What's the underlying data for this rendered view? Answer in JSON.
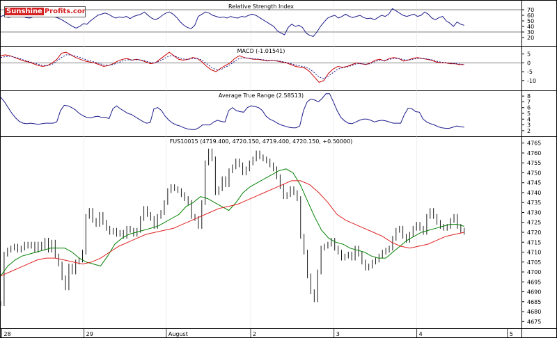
{
  "watermark": {
    "part1": "Sunshine",
    "part2": "Profits",
    "suffix": ".com"
  },
  "chart_data": [
    {
      "type": "line",
      "title": "Relative Strength Index",
      "ylim": [
        10,
        80
      ],
      "yticks": [
        20,
        30,
        40,
        50,
        60,
        70
      ],
      "reference_lines": [
        30,
        70
      ],
      "series": [
        {
          "color": "#1a1a8c",
          "values": [
            58,
            60,
            56,
            57,
            60,
            59,
            58,
            56,
            55,
            57,
            60,
            58,
            59,
            60,
            58,
            57,
            55,
            52,
            48,
            44,
            40,
            37,
            40,
            45,
            44,
            50,
            55,
            60,
            62,
            64,
            62,
            58,
            55,
            57,
            56,
            58,
            54,
            58,
            60,
            62,
            66,
            60,
            55,
            52,
            55,
            60,
            64,
            66,
            62,
            56,
            48,
            42,
            38,
            36,
            42,
            58,
            62,
            66,
            64,
            60,
            58,
            56,
            57,
            55,
            58,
            56,
            55,
            58,
            57,
            60,
            62,
            60,
            56,
            52,
            48,
            44,
            40,
            32,
            28,
            25,
            38,
            44,
            40,
            42,
            38,
            28,
            24,
            22,
            30,
            40,
            48,
            55,
            58,
            60,
            55,
            58,
            62,
            58,
            56,
            58,
            60,
            56,
            54,
            55,
            52,
            56,
            60,
            58,
            62,
            72,
            68,
            64,
            60,
            58,
            60,
            62,
            58,
            60,
            66,
            62,
            55,
            52,
            56,
            58,
            50,
            46,
            40,
            48,
            44,
            42
          ]
        }
      ],
      "xticks": [
        "28",
        "29",
        "August",
        "2",
        "3",
        "4",
        "5"
      ]
    },
    {
      "type": "line",
      "title": "MACD (-1.01541)",
      "ylim": [
        -14,
        8
      ],
      "yticks": [
        -10,
        -5,
        0,
        5
      ],
      "reference_lines": [
        0
      ],
      "series": [
        {
          "color": "#cc0000",
          "values": [
            4,
            4.5,
            4,
            3,
            2,
            1,
            0.5,
            -0.5,
            -1.5,
            -2,
            -1.5,
            0,
            2,
            5.5,
            6,
            4.5,
            3,
            2,
            1,
            0.5,
            0,
            -1,
            -2,
            -1.5,
            -0.5,
            1,
            2,
            2.5,
            1.5,
            2,
            1.5,
            0.5,
            -0.5,
            0,
            2,
            4,
            6,
            4,
            2,
            1.5,
            2,
            3,
            2.5,
            0.5,
            -2,
            -4,
            -5,
            -3,
            -1.5,
            0,
            2.5,
            4,
            3,
            2.5,
            2,
            2,
            1.5,
            1,
            1.5,
            1,
            0.5,
            0,
            -1,
            -2,
            -2.5,
            -3,
            -5,
            -8,
            -11,
            -10,
            -6,
            -3.5,
            -2,
            -2.5,
            -2,
            -1,
            0,
            -0.5,
            -1,
            0,
            1.5,
            2,
            1,
            2.5,
            3,
            2.5,
            1,
            1.5,
            2.5,
            3,
            2.5,
            2,
            1.5,
            0.5,
            0,
            0,
            -0.5,
            -0.5,
            -1,
            -1
          ]
        },
        {
          "color": "#1a1a8c",
          "values": [
            3,
            3.5,
            3.8,
            3.2,
            2.5,
            1.5,
            0.8,
            0,
            -0.8,
            -1.5,
            -1.6,
            -0.8,
            1,
            3,
            4.5,
            4.5,
            3.8,
            3,
            2,
            1.2,
            0.5,
            -0.3,
            -1.2,
            -1.4,
            -0.9,
            0,
            1,
            1.8,
            1.6,
            1.8,
            1.6,
            1,
            0.2,
            0,
            1,
            2.5,
            4,
            4,
            3,
            2.2,
            2,
            2.5,
            2.5,
            1.5,
            -0.5,
            -2.5,
            -4,
            -3.8,
            -2.5,
            -1,
            1,
            2.5,
            2.8,
            2.6,
            2.3,
            2.1,
            1.8,
            1.4,
            1.4,
            1.2,
            0.8,
            0.3,
            -0.5,
            -1.2,
            -1.8,
            -2.3,
            -3.5,
            -5.5,
            -8,
            -9,
            -7.5,
            -5.5,
            -3.5,
            -2.8,
            -2.3,
            -1.5,
            -0.5,
            -0.5,
            -0.8,
            -0.5,
            0.8,
            1.5,
            1.3,
            2,
            2.5,
            2.5,
            1.8,
            1.6,
            2,
            2.5,
            2.5,
            2.2,
            1.8,
            1,
            0.4,
            0.2,
            -0.2,
            -0.4,
            -0.7,
            -0.9
          ]
        }
      ]
    },
    {
      "type": "line",
      "title": "Average True Range (2.58513)",
      "ylim": [
        1.5,
        8.5
      ],
      "yticks": [
        2,
        3,
        4,
        5,
        6,
        7,
        8
      ],
      "series": [
        {
          "color": "#1a1a8c",
          "values": [
            7.8,
            7,
            6,
            5,
            4.2,
            3.6,
            3.3,
            3.2,
            3.3,
            3.2,
            3.1,
            3.2,
            3.3,
            3.3,
            3.3,
            3.5,
            5.5,
            6.4,
            6.3,
            6,
            5.6,
            5,
            4.6,
            4.3,
            4.2,
            4.4,
            4.5,
            4.3,
            4.3,
            4.1,
            5.8,
            6.3,
            5.8,
            5.4,
            5,
            4.8,
            4.4,
            4,
            3.6,
            3.3,
            3.4,
            5.8,
            6,
            5.5,
            4.5,
            3.8,
            3.3,
            3,
            2.8,
            2.5,
            2.3,
            2.2,
            2.2,
            2.5,
            3,
            3,
            3,
            3.5,
            3.8,
            3.6,
            3.5,
            5.5,
            6,
            5.5,
            5.3,
            5.2,
            6,
            6.3,
            6.2,
            6,
            5.5,
            4.5,
            4,
            3.7,
            3.3,
            3,
            2.8,
            2.6,
            2.5,
            2.5,
            2.8,
            5.5,
            7,
            7.5,
            7.3,
            7,
            7.6,
            8.4,
            8.4,
            7,
            5.5,
            4.3,
            3.7,
            3.3,
            3.2,
            3.5,
            3.8,
            4,
            4,
            3.8,
            3.5,
            3.7,
            3.8,
            3.7,
            3.5,
            3.3,
            3.3,
            3.3,
            4.8,
            5.9,
            5.8,
            5.3,
            5.2,
            4,
            3.5,
            3.2,
            3,
            2.7,
            2.5,
            2.4,
            2.4,
            2.6,
            2.8,
            2.7,
            2.6
          ]
        }
      ]
    },
    {
      "type": "line",
      "title": "FUS10015 (4719.400, 4720.150, 4719.400, 4720.150, +0.50000)",
      "ylim": [
        4673,
        4767
      ],
      "yticks": [
        4675,
        4680,
        4685,
        4690,
        4695,
        4700,
        4705,
        4710,
        4715,
        4720,
        4725,
        4730,
        4735,
        4740,
        4745,
        4750,
        4755,
        4760,
        4765
      ],
      "xticks": [
        "28",
        "29",
        "August",
        "2",
        "3",
        "4",
        "5"
      ],
      "series": [
        {
          "name": "",
          "color": "#1a1a1a",
          "values": [
            4684,
            4709,
            4711,
            4712,
            4713,
            4711,
            4712,
            4714,
            4713,
            4714,
            4711,
            4714,
            4712,
            4716,
            4711,
            4715,
            4708,
            4704,
            4697,
            4692,
            4703,
            4700,
            4705,
            4706,
            4710,
            4728,
            4731,
            4726,
            4724,
            4729,
            4725,
            4722,
            4720,
            4721,
            4719,
            4720,
            4718,
            4722,
            4721,
            4719,
            4721,
            4727,
            4732,
            4729,
            4727,
            4723,
            4728,
            4730,
            4735,
            4741,
            4743,
            4742,
            4741,
            4739,
            4737,
            4735,
            4728,
            4727,
            4723,
            4735,
            4755,
            4761,
            4757,
            4740,
            4742,
            4747,
            4744,
            4751,
            4753,
            4756,
            4754,
            4750,
            4752,
            4755,
            4757,
            4760,
            4758,
            4757,
            4756,
            4754,
            4752,
            4748,
            4743,
            4738,
            4739,
            4742,
            4740,
            4737,
            4718,
            4710,
            4698,
            4690,
            4686,
            4700,
            4712,
            4713,
            4714,
            4716,
            4712,
            4710,
            4707,
            4708,
            4709,
            4707,
            4712,
            4709,
            4705,
            4702,
            4703,
            4705,
            4706,
            4708,
            4710,
            4711,
            4712,
            4717,
            4721,
            4722,
            4718,
            4716,
            4719,
            4722,
            4724,
            4722,
            4720,
            4728,
            4731,
            4728,
            4725,
            4723,
            4722,
            4723,
            4726,
            4728,
            4723,
            4721,
            4720
          ]
        },
        {
          "name": "",
          "color": "#008000",
          "values": [
            4698,
            4703,
            4706,
            4708,
            4709,
            4710,
            4711,
            4712,
            4712,
            4712,
            4710,
            4707,
            4705,
            4704,
            4703,
            4708,
            4714,
            4717,
            4719,
            4720,
            4721,
            4722,
            4723,
            4725,
            4727,
            4729,
            4733,
            4735,
            4738,
            4737,
            4735,
            4733,
            4731,
            4735,
            4740,
            4743,
            4745,
            4747,
            4749,
            4751,
            4752,
            4750,
            4744,
            4736,
            4728,
            4721,
            4717,
            4715,
            4714,
            4712,
            4711,
            4710,
            4708,
            4707,
            4707,
            4710,
            4713,
            4716,
            4718,
            4720,
            4721,
            4722,
            4723,
            4724,
            4724,
            4723
          ]
        },
        {
          "name": "",
          "color": "#e02020",
          "values": [
            4698,
            4700,
            4702,
            4704,
            4706,
            4707,
            4707,
            4706,
            4705,
            4704,
            4705,
            4707,
            4710,
            4713,
            4715,
            4717,
            4719,
            4720,
            4721,
            4722,
            4724,
            4726,
            4728,
            4730,
            4732,
            4733,
            4734,
            4736,
            4738,
            4740,
            4742,
            4744,
            4746,
            4746,
            4744,
            4740,
            4735,
            4729,
            4726,
            4724,
            4722,
            4720,
            4718,
            4715,
            4713,
            4712,
            4713,
            4714,
            4716,
            4718,
            4719,
            4720
          ]
        }
      ]
    }
  ]
}
